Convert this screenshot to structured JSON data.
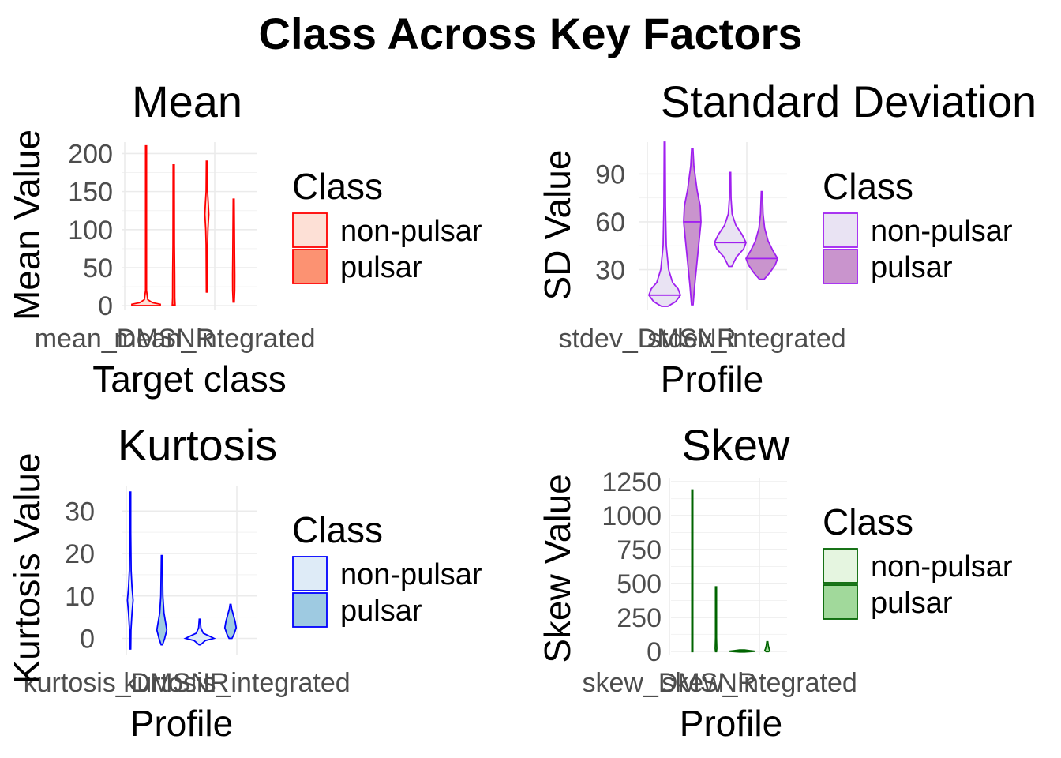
{
  "title": "Class Across Key Factors",
  "chart_data": [
    {
      "type": "violin",
      "title": "Mean",
      "xlabel": "Target class",
      "ylabel": "Mean Value",
      "color": "#ff0000",
      "fill_nonpulsar": "#fde0d6",
      "fill_pulsar": "#fc9272",
      "categories": [
        "mean_DMSNR",
        "mean_integrated"
      ],
      "yticks": [
        0,
        50,
        100,
        150,
        200
      ],
      "ylim": [
        -5,
        215
      ],
      "legend": {
        "title": "Class",
        "entries": [
          "non-pulsar",
          "pulsar"
        ],
        "position": "right"
      },
      "violins": [
        {
          "category": "mean_DMSNR",
          "class": "non-pulsar",
          "min": 0.2,
          "max": 210,
          "profile": [
            [
              0.2,
              1.0
            ],
            [
              2,
              1.0
            ],
            [
              4,
              0.45
            ],
            [
              8,
              0.12
            ],
            [
              20,
              0.03
            ],
            [
              60,
              0.02
            ],
            [
              210,
              0.02
            ]
          ]
        },
        {
          "category": "mean_DMSNR",
          "class": "pulsar",
          "min": 1,
          "max": 185,
          "profile": [
            [
              1,
              0.1
            ],
            [
              10,
              0.08
            ],
            [
              40,
              0.07
            ],
            [
              80,
              0.05
            ],
            [
              185,
              0.04
            ]
          ]
        },
        {
          "category": "mean_integrated",
          "class": "non-pulsar",
          "min": 18,
          "max": 190,
          "profile": [
            [
              18,
              0.02
            ],
            [
              80,
              0.05
            ],
            [
              100,
              0.08
            ],
            [
              120,
              0.14
            ],
            [
              135,
              0.1
            ],
            [
              150,
              0.05
            ],
            [
              190,
              0.02
            ]
          ]
        },
        {
          "category": "mean_integrated",
          "class": "pulsar",
          "min": 5,
          "max": 140,
          "profile": [
            [
              5,
              0.04
            ],
            [
              20,
              0.07
            ],
            [
              40,
              0.08
            ],
            [
              70,
              0.06
            ],
            [
              100,
              0.05
            ],
            [
              140,
              0.03
            ]
          ]
        }
      ]
    },
    {
      "type": "violin",
      "title": "Standard Deviation",
      "xlabel": "Profile",
      "ylabel": "SD Value",
      "color": "#a020f0",
      "fill_nonpulsar": "#e9e3f3",
      "fill_pulsar": "#c994cd",
      "categories": [
        "stdev_DMSNR",
        "stdev_integrated"
      ],
      "yticks": [
        30,
        60,
        90
      ],
      "ylim": [
        5,
        110
      ],
      "legend": {
        "title": "Class",
        "entries": [
          "non-pulsar",
          "pulsar"
        ],
        "position": "right"
      },
      "violins": [
        {
          "category": "stdev_DMSNR",
          "class": "non-pulsar",
          "min": 7,
          "max": 110,
          "median": 14,
          "profile": [
            [
              7,
              0.2
            ],
            [
              10,
              0.7
            ],
            [
              14,
              1.0
            ],
            [
              18,
              0.85
            ],
            [
              22,
              0.5
            ],
            [
              30,
              0.25
            ],
            [
              45,
              0.1
            ],
            [
              70,
              0.05
            ],
            [
              110,
              0.02
            ]
          ]
        },
        {
          "category": "stdev_DMSNR",
          "class": "pulsar",
          "min": 8,
          "max": 106,
          "median": 60,
          "profile": [
            [
              8,
              0.05
            ],
            [
              20,
              0.15
            ],
            [
              35,
              0.3
            ],
            [
              50,
              0.45
            ],
            [
              60,
              0.55
            ],
            [
              70,
              0.5
            ],
            [
              80,
              0.3
            ],
            [
              95,
              0.1
            ],
            [
              106,
              0.04
            ]
          ]
        },
        {
          "category": "stdev_integrated",
          "class": "non-pulsar",
          "min": 32,
          "max": 91,
          "median": 47,
          "profile": [
            [
              32,
              0.1
            ],
            [
              38,
              0.4
            ],
            [
              43,
              0.85
            ],
            [
              47,
              1.0
            ],
            [
              52,
              0.75
            ],
            [
              58,
              0.35
            ],
            [
              65,
              0.12
            ],
            [
              75,
              0.05
            ],
            [
              91,
              0.02
            ]
          ]
        },
        {
          "category": "stdev_integrated",
          "class": "pulsar",
          "min": 24,
          "max": 79,
          "median": 37,
          "profile": [
            [
              24,
              0.15
            ],
            [
              28,
              0.5
            ],
            [
              33,
              0.85
            ],
            [
              37,
              1.0
            ],
            [
              42,
              0.7
            ],
            [
              48,
              0.4
            ],
            [
              56,
              0.18
            ],
            [
              65,
              0.08
            ],
            [
              79,
              0.02
            ]
          ]
        }
      ]
    },
    {
      "type": "violin",
      "title": "Kurtosis",
      "xlabel": "Profile",
      "ylabel": "Kurtosis Value",
      "color": "#0000ff",
      "fill_nonpulsar": "#deebf7",
      "fill_pulsar": "#9ecae1",
      "categories": [
        "kurtosis_DMSNR",
        "kurtosis_integrated"
      ],
      "yticks": [
        0,
        10,
        20,
        30
      ],
      "ylim": [
        -4,
        36
      ],
      "legend": {
        "title": "Class",
        "entries": [
          "non-pulsar",
          "pulsar"
        ],
        "position": "right"
      },
      "violins": [
        {
          "category": "kurtosis_DMSNR",
          "class": "non-pulsar",
          "min": -2.5,
          "max": 34.5,
          "profile": [
            [
              -2.5,
              0.02
            ],
            [
              2,
              0.05
            ],
            [
              6,
              0.12
            ],
            [
              9,
              0.2
            ],
            [
              12,
              0.12
            ],
            [
              16,
              0.06
            ],
            [
              25,
              0.03
            ],
            [
              34.5,
              0.01
            ]
          ]
        },
        {
          "category": "kurtosis_DMSNR",
          "class": "pulsar",
          "min": -1.5,
          "max": 19.5,
          "profile": [
            [
              -1.5,
              0.05
            ],
            [
              0,
              0.2
            ],
            [
              2,
              0.35
            ],
            [
              4,
              0.25
            ],
            [
              6,
              0.15
            ],
            [
              10,
              0.07
            ],
            [
              19.5,
              0.02
            ]
          ]
        },
        {
          "category": "kurtosis_integrated",
          "class": "non-pulsar",
          "min": -1.5,
          "max": 4.5,
          "profile": [
            [
              -1.5,
              0.05
            ],
            [
              -0.5,
              0.4
            ],
            [
              0,
              1.0
            ],
            [
              0.5,
              0.7
            ],
            [
              1.2,
              0.25
            ],
            [
              2.5,
              0.08
            ],
            [
              4.5,
              0.02
            ]
          ]
        },
        {
          "category": "kurtosis_integrated",
          "class": "pulsar",
          "min": 0,
          "max": 8,
          "profile": [
            [
              0,
              0.1
            ],
            [
              1,
              0.25
            ],
            [
              2.5,
              0.4
            ],
            [
              4,
              0.32
            ],
            [
              5.5,
              0.2
            ],
            [
              7,
              0.08
            ],
            [
              8,
              0.02
            ]
          ]
        }
      ]
    },
    {
      "type": "violin",
      "title": "Skew",
      "xlabel": "Profile",
      "ylabel": "Skew Value",
      "color": "#006400",
      "fill_nonpulsar": "#e5f5e0",
      "fill_pulsar": "#a1d99b",
      "categories": [
        "skew_DMSNR",
        "skew_integrated"
      ],
      "yticks": [
        0,
        250,
        500,
        750,
        1000,
        1250
      ],
      "ylim": [
        -30,
        1280
      ],
      "legend": {
        "title": "Class",
        "entries": [
          "non-pulsar",
          "pulsar"
        ],
        "position": "right"
      },
      "violins": [
        {
          "category": "skew_DMSNR",
          "class": "non-pulsar",
          "min": -2,
          "max": 1190,
          "profile": [
            [
              -2,
              0.02
            ],
            [
              50,
              0.03
            ],
            [
              200,
              0.03
            ],
            [
              600,
              0.02
            ],
            [
              1190,
              0.02
            ]
          ]
        },
        {
          "category": "skew_DMSNR",
          "class": "pulsar",
          "min": -2,
          "max": 475,
          "profile": [
            [
              -2,
              0.04
            ],
            [
              20,
              0.06
            ],
            [
              100,
              0.03
            ],
            [
              300,
              0.02
            ],
            [
              475,
              0.02
            ]
          ]
        },
        {
          "category": "skew_integrated",
          "class": "non-pulsar",
          "min": -5,
          "max": 10,
          "profile": [
            [
              -5,
              0.2
            ],
            [
              0,
              1.0
            ],
            [
              5,
              0.6
            ],
            [
              10,
              0.2
            ]
          ]
        },
        {
          "category": "skew_integrated",
          "class": "pulsar",
          "min": -2,
          "max": 70,
          "profile": [
            [
              -2,
              0.1
            ],
            [
              5,
              0.2
            ],
            [
              20,
              0.14
            ],
            [
              40,
              0.08
            ],
            [
              70,
              0.02
            ]
          ]
        }
      ]
    }
  ]
}
